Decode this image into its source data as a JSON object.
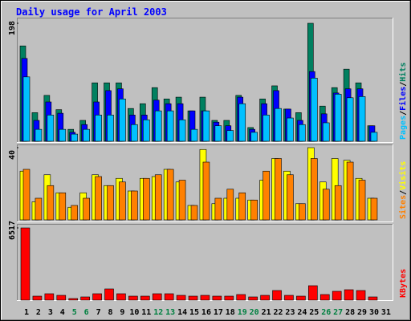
{
  "chart_data": [
    {
      "type": "bar",
      "title": "Daily usage for April 2003",
      "categories": [
        "1",
        "2",
        "3",
        "4",
        "5",
        "6",
        "7",
        "8",
        "9",
        "10",
        "11",
        "12",
        "13",
        "14",
        "15",
        "16",
        "17",
        "18",
        "19",
        "20",
        "21",
        "22",
        "23",
        "24",
        "25",
        "26",
        "27",
        "28",
        "29",
        "30",
        "31"
      ],
      "highlight_indices": [
        4,
        5,
        11,
        12,
        18,
        19,
        25,
        26
      ],
      "highlight_color": "#008040",
      "legend_separator": "/",
      "ylim": [
        0,
        198
      ],
      "yticks": [
        198
      ],
      "series": [
        {
          "name": "Hits",
          "color": "#008060",
          "values": [
            160,
            48,
            77,
            53,
            20,
            35,
            98,
            98,
            98,
            55,
            63,
            90,
            71,
            74,
            51,
            74,
            35,
            35,
            77,
            23,
            71,
            93,
            54,
            48,
            198,
            59,
            90,
            121,
            98,
            26,
            null
          ]
        },
        {
          "name": "Files",
          "color": "#0000ff",
          "values": [
            139,
            35,
            66,
            47,
            15,
            28,
            66,
            85,
            88,
            44,
            44,
            69,
            63,
            63,
            51,
            51,
            32,
            26,
            74,
            20,
            63,
            85,
            54,
            35,
            117,
            46,
            81,
            88,
            88,
            26,
            null
          ]
        },
        {
          "name": "Pages",
          "color": "#00c0ff",
          "values": [
            108,
            20,
            44,
            20,
            12,
            20,
            44,
            44,
            71,
            28,
            36,
            51,
            51,
            36,
            20,
            51,
            26,
            18,
            63,
            15,
            44,
            55,
            39,
            28,
            106,
            31,
            79,
            73,
            75,
            15,
            null
          ]
        }
      ]
    },
    {
      "type": "bar",
      "legend_separator": "/",
      "ylim": [
        0,
        40
      ],
      "yticks": [
        40
      ],
      "series": [
        {
          "name": "Visits",
          "color": "#ffff00",
          "values": [
            27,
            10,
            25,
            15,
            7,
            15,
            25,
            19,
            23,
            16,
            23,
            24,
            28,
            21,
            8,
            39,
            9,
            12,
            12,
            11,
            22,
            34,
            27,
            9,
            40,
            21,
            34,
            33,
            23,
            12,
            null
          ]
        },
        {
          "name": "Sites",
          "color": "#ff8000",
          "values": [
            28,
            12,
            19,
            15,
            8,
            12,
            24,
            19,
            21,
            16,
            23,
            25,
            28,
            22,
            8,
            32,
            12,
            17,
            15,
            11,
            27,
            34,
            25,
            9,
            34,
            17,
            19,
            32,
            22,
            12,
            null
          ]
        }
      ]
    },
    {
      "type": "bar",
      "ylim": [
        0,
        6517
      ],
      "yticks": [
        6517
      ],
      "series": [
        {
          "name": "KBytes",
          "color": "#ff0000",
          "values": [
            6517,
            362,
            579,
            434,
            145,
            290,
            579,
            1014,
            579,
            362,
            362,
            579,
            579,
            434,
            362,
            434,
            362,
            362,
            507,
            290,
            434,
            869,
            434,
            362,
            1303,
            507,
            797,
            941,
            869,
            290,
            null
          ]
        }
      ]
    }
  ]
}
